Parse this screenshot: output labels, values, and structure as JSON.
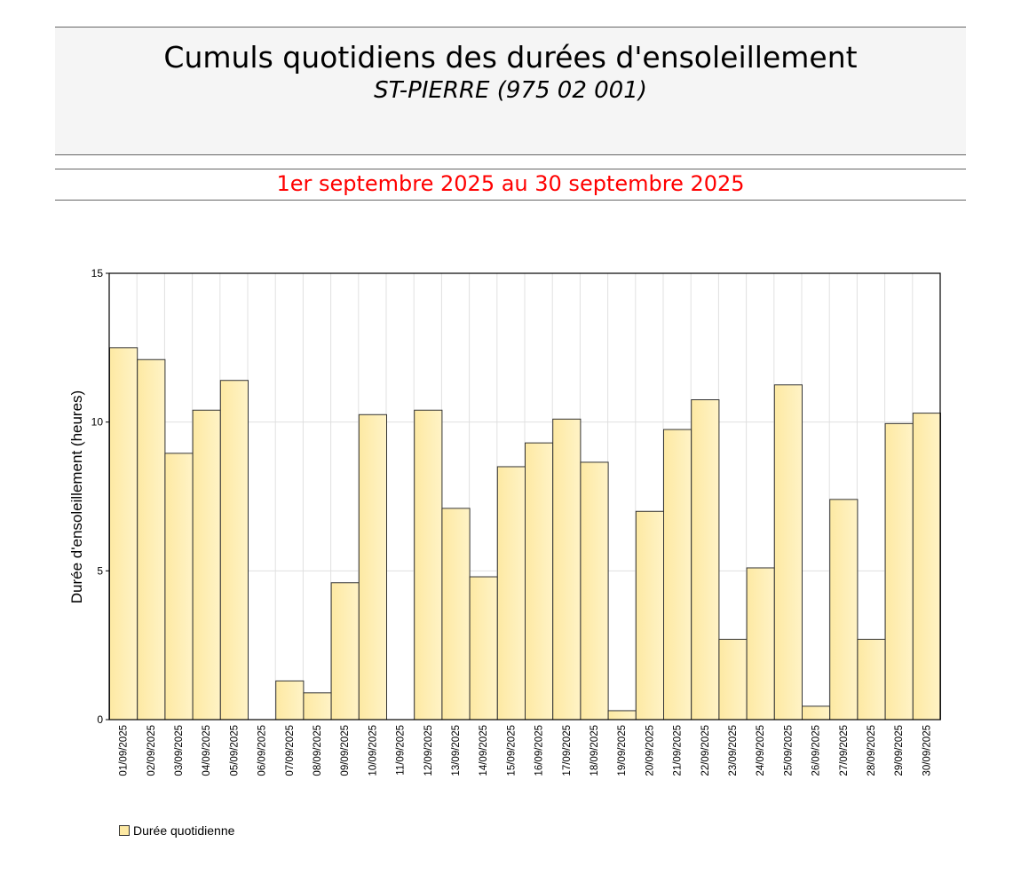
{
  "header": {
    "title": "Cumuls quotidiens des durées d'ensoleillement",
    "subtitle": "ST-PIERRE (975 02 001)",
    "period": "1er septembre 2025 au 30 septembre 2025"
  },
  "colors": {
    "bar_fill_left": "#fde9a3",
    "bar_fill_right": "#fff3c6",
    "bar_stroke": "#333333",
    "grid": "#e0e0e0",
    "period_text": "#ff0000",
    "header_bg": "#f5f5f5"
  },
  "legend": {
    "label": "Durée quotidienne"
  },
  "chart_data": {
    "type": "bar",
    "title": "Cumuls quotidiens des durées d'ensoleillement",
    "subtitle": "ST-PIERRE (975 02 001)",
    "xlabel": "",
    "ylabel": "Durée d'ensoleillement (heures)",
    "ylim": [
      0,
      15
    ],
    "yticks": [
      0,
      5,
      10,
      15
    ],
    "grid": true,
    "legend_position": "bottom-left",
    "categories": [
      "01/09/2025",
      "02/09/2025",
      "03/09/2025",
      "04/09/2025",
      "05/09/2025",
      "06/09/2025",
      "07/09/2025",
      "08/09/2025",
      "09/09/2025",
      "10/09/2025",
      "11/09/2025",
      "12/09/2025",
      "13/09/2025",
      "14/09/2025",
      "15/09/2025",
      "16/09/2025",
      "17/09/2025",
      "18/09/2025",
      "19/09/2025",
      "20/09/2025",
      "21/09/2025",
      "22/09/2025",
      "23/09/2025",
      "24/09/2025",
      "25/09/2025",
      "26/09/2025",
      "27/09/2025",
      "28/09/2025",
      "29/09/2025",
      "30/09/2025"
    ],
    "series": [
      {
        "name": "Durée quotidienne",
        "values": [
          12.5,
          12.1,
          8.95,
          10.4,
          11.4,
          0,
          1.3,
          0.9,
          4.6,
          10.25,
          0,
          10.4,
          7.1,
          4.8,
          8.5,
          9.3,
          10.1,
          8.65,
          0.3,
          7.0,
          9.75,
          10.75,
          2.7,
          5.1,
          11.25,
          0.45,
          7.4,
          2.7,
          9.95,
          10.3
        ]
      }
    ]
  }
}
